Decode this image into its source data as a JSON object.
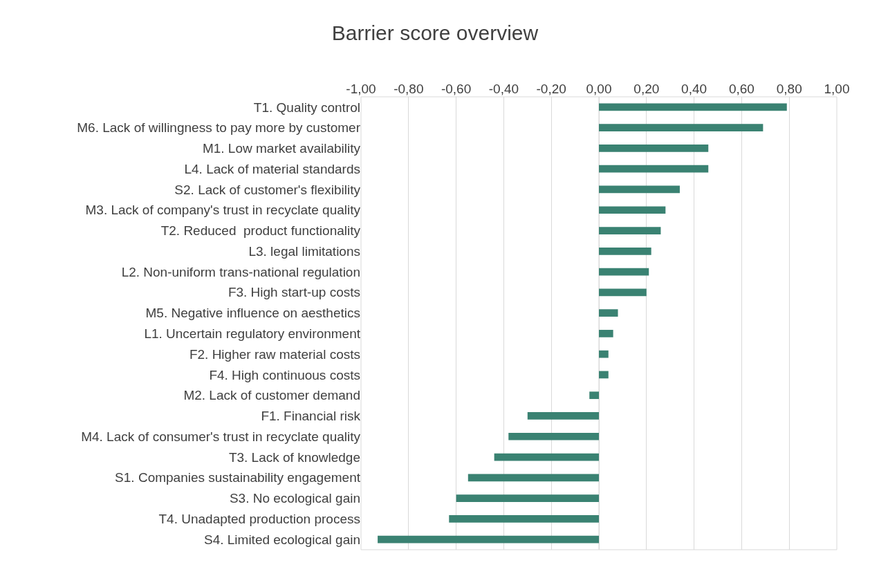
{
  "chart_data": {
    "type": "bar",
    "orientation": "horizontal",
    "title": "Barrier score overview",
    "categories": [
      "T1. Quality control",
      "M6. Lack of willingness to pay more by customer",
      "M1. Low market availability",
      "L4. Lack of material standards",
      "S2. Lack of customer's flexibility",
      "M3. Lack of company's trust in recyclate quality",
      "T2. Reduced  product functionality",
      "L3. legal limitations",
      "L2. Non-uniform trans-national regulation",
      "F3. High start-up costs",
      "M5. Negative influence on aesthetics",
      "L1. Uncertain regulatory environment",
      "F2. Higher raw material costs",
      "F4. High continuous costs",
      "M2. Lack of customer demand",
      "F1. Financial risk",
      "M4. Lack of consumer's trust in recyclate quality",
      "T3. Lack of knowledge",
      "S1. Companies sustainability engagement",
      "S3. No ecological gain",
      "T4. Unadapted production process",
      "S4. Limited ecological gain"
    ],
    "values": [
      0.79,
      0.69,
      0.46,
      0.46,
      0.34,
      0.28,
      0.26,
      0.22,
      0.21,
      0.2,
      0.08,
      0.06,
      0.04,
      0.04,
      -0.04,
      -0.3,
      -0.38,
      -0.44,
      -0.55,
      -0.6,
      -0.63,
      -0.93
    ],
    "color": "#3a8272",
    "xlim": [
      -1,
      1
    ],
    "xticks": [
      {
        "value": -1,
        "label": "-1,00"
      },
      {
        "value": -0.8,
        "label": "-0,80"
      },
      {
        "value": -0.6,
        "label": "-0,60"
      },
      {
        "value": -0.4,
        "label": "-0,40"
      },
      {
        "value": -0.2,
        "label": "-0,20"
      },
      {
        "value": 0,
        "label": "0,00"
      },
      {
        "value": 0.2,
        "label": "0,20"
      },
      {
        "value": 0.4,
        "label": "0,40"
      },
      {
        "value": 0.6,
        "label": "0,60"
      },
      {
        "value": 0.8,
        "label": "0,80"
      },
      {
        "value": 1,
        "label": "1,00"
      }
    ],
    "grid": "x"
  }
}
